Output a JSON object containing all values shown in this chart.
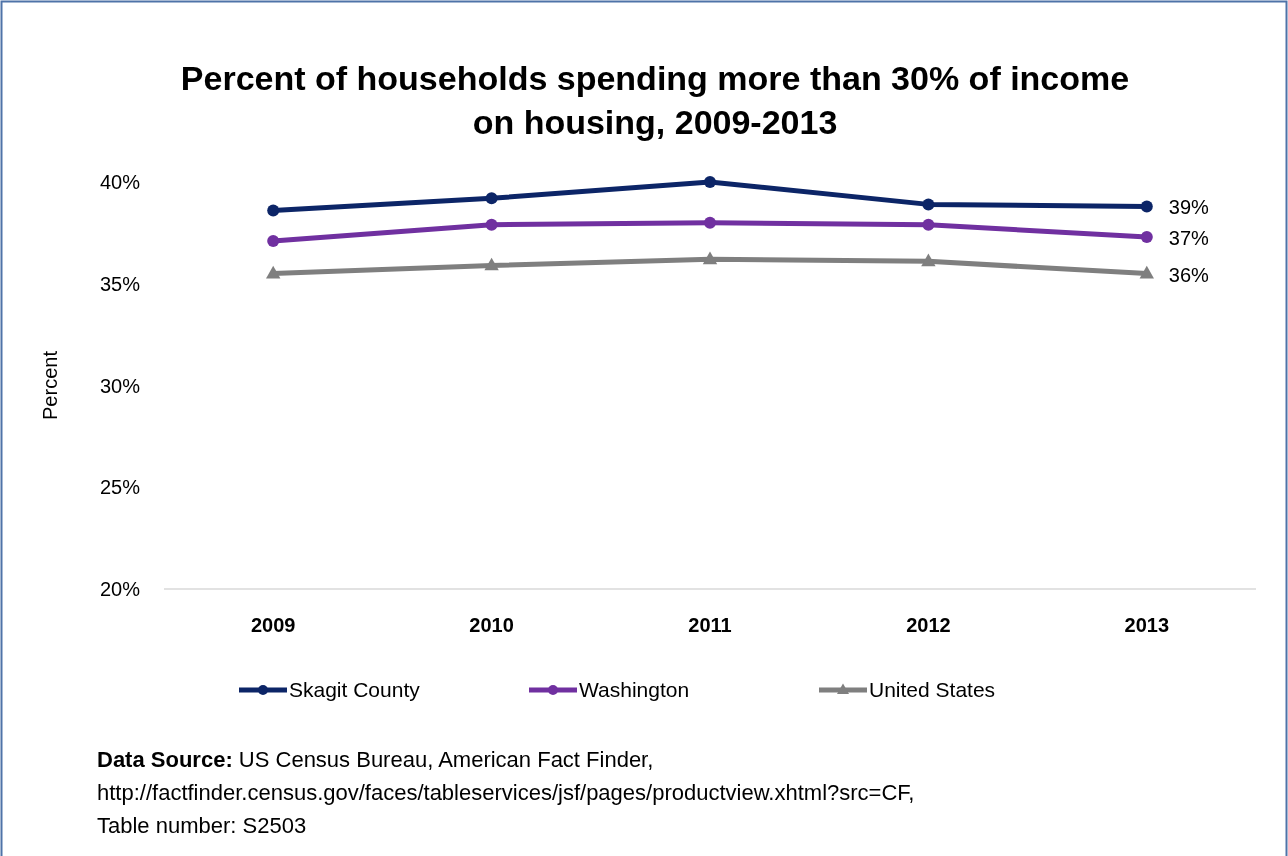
{
  "chart_data": {
    "type": "line",
    "title": "Percent of households spending more than 30% of income on housing, 2009-2013",
    "ylabel": "Percent",
    "categories": [
      "2009",
      "2010",
      "2011",
      "2012",
      "2013"
    ],
    "series": [
      {
        "name": "Skagit County",
        "color": "#0c2567",
        "marker": "circle",
        "values": [
          38.6,
          39.2,
          40.0,
          38.9,
          38.8
        ],
        "value_labels": [
          null,
          null,
          null,
          null,
          "39%"
        ]
      },
      {
        "name": "Washington",
        "color": "#7030a0",
        "marker": "circle",
        "values": [
          37.1,
          37.9,
          38.0,
          37.9,
          37.3
        ],
        "value_labels": [
          null,
          null,
          null,
          null,
          "37%"
        ]
      },
      {
        "name": "United States",
        "color": "#7f7f7f",
        "marker": "triangle",
        "values": [
          35.5,
          35.9,
          36.2,
          36.1,
          35.5
        ],
        "value_labels": [
          null,
          null,
          null,
          null,
          "36%"
        ]
      }
    ],
    "ylim": [
      20,
      40
    ],
    "yticks": [
      {
        "value": 20,
        "label": "20%"
      },
      {
        "value": 25,
        "label": "25%"
      },
      {
        "value": 30,
        "label": "30%"
      },
      {
        "value": 35,
        "label": "35%"
      },
      {
        "value": 40,
        "label": "40%"
      }
    ],
    "grid": false,
    "legend": "bottom",
    "line_style": "solid",
    "annotations": [
      "Data Source: US Census Bureau, American Fact Finder, http://factfinder.census.gov/faces/tableservices/jsf/pages/productview.xhtml?src=CF, Table number: S2503"
    ]
  }
}
